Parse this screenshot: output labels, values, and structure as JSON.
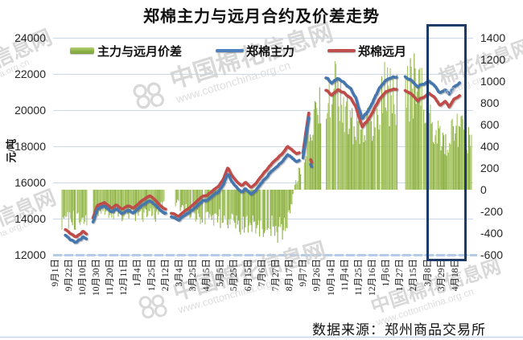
{
  "title": "郑棉主力与远月合约及价差走势",
  "source": "数据来源：郑州商品交易所",
  "watermark": {
    "brand": "中国棉花信息网",
    "url": "www.cottonchina.org.cn",
    "brand_part1": "花信息网",
    "brand_part2": "棉花信息网",
    "url_part1": "nchina.org.cn",
    "url_part2": "ina.org.cn"
  },
  "chart_data": {
    "type": "combo",
    "title": "郑棉主力与远月合约及价差走势",
    "legend": [
      {
        "label": "主力与远月价差",
        "type": "bar",
        "color": "#8FB347"
      },
      {
        "label": "郑棉主力",
        "type": "line",
        "color": "#4F81BD"
      },
      {
        "label": "郑棉远月",
        "type": "line",
        "color": "#C0504D"
      }
    ],
    "y_left": {
      "label": "元/吨",
      "min": 12000,
      "max": 24000,
      "step": 2000,
      "ticks": [
        "24000",
        "22000",
        "20000",
        "18000",
        "16000",
        "14000",
        "12000"
      ]
    },
    "y_right": {
      "min": -600,
      "max": 1400,
      "step": 200,
      "ticks": [
        "1400",
        "1200",
        "1000",
        "800",
        "600",
        "400",
        "200",
        "0",
        "-200",
        "-400",
        "-600"
      ]
    },
    "x_ticks": [
      "9月1日",
      "9月22日",
      "10月10日",
      "10月30日",
      "11月20日",
      "12月11日",
      "1月4日",
      "1月25日",
      "2月12日",
      "3月4日",
      "3月25日",
      "4月15日",
      "5月5日",
      "5月25日",
      "6月15日",
      "7月6日",
      "7月27日",
      "8月17日",
      "9月7日",
      "9月26日",
      "10月14日",
      "11月4日",
      "11月25日",
      "12月16日",
      "1月6日",
      "1月27日",
      "2月15日",
      "3月8日",
      "3月29日",
      "4月18日"
    ],
    "n_points": 430,
    "seed": 11,
    "noise": {
      "line": 55,
      "line_spread": 22,
      "bar": 85
    },
    "price_anchors": [
      [
        0.02,
        13520,
        -330
      ],
      [
        0.04,
        13200,
        -340
      ],
      [
        0.056,
        12990,
        -310
      ],
      [
        0.071,
        13300,
        -300
      ],
      [
        0.08,
        13160,
        -280
      ],
      [
        0.094,
        14000,
        -250
      ],
      [
        0.105,
        14700,
        -200
      ],
      [
        0.122,
        14890,
        -180
      ],
      [
        0.138,
        14580,
        -220
      ],
      [
        0.151,
        14760,
        -230
      ],
      [
        0.165,
        14490,
        -250
      ],
      [
        0.176,
        14710,
        -250
      ],
      [
        0.19,
        14580,
        -260
      ],
      [
        0.203,
        14800,
        -260
      ],
      [
        0.216,
        15070,
        -270
      ],
      [
        0.23,
        15250,
        -270
      ],
      [
        0.243,
        15030,
        -260
      ],
      [
        0.257,
        14670,
        -250
      ],
      [
        0.272,
        14450,
        -220
      ],
      [
        0.285,
        14270,
        -200
      ],
      [
        0.299,
        14140,
        -200
      ],
      [
        0.312,
        14400,
        -230
      ],
      [
        0.326,
        14620,
        -250
      ],
      [
        0.339,
        14890,
        -260
      ],
      [
        0.352,
        15160,
        -270
      ],
      [
        0.366,
        15290,
        -270
      ],
      [
        0.379,
        15520,
        -280
      ],
      [
        0.393,
        15780,
        -290
      ],
      [
        0.406,
        16220,
        -310
      ],
      [
        0.416,
        16820,
        -330
      ],
      [
        0.425,
        16400,
        -330
      ],
      [
        0.439,
        16050,
        -340
      ],
      [
        0.448,
        15830,
        -350
      ],
      [
        0.458,
        16000,
        -360
      ],
      [
        0.471,
        15740,
        -370
      ],
      [
        0.483,
        15960,
        -380
      ],
      [
        0.496,
        16360,
        -390
      ],
      [
        0.51,
        16760,
        -400
      ],
      [
        0.523,
        17120,
        -420
      ],
      [
        0.536,
        17380,
        -430
      ],
      [
        0.55,
        17730,
        -440
      ],
      [
        0.559,
        18000,
        -450
      ],
      [
        0.567,
        17870,
        -440
      ],
      [
        0.579,
        17560,
        -430
      ],
      [
        0.586,
        17650,
        -420
      ],
      [
        0.594,
        17500,
        -300
      ],
      [
        0.609,
        19900,
        -250
      ],
      [
        0.612,
        17350,
        -250
      ],
      [
        0.616,
        17120,
        -250
      ],
      [
        0.649,
        21110,
        700
      ],
      [
        0.663,
        20840,
        680
      ],
      [
        0.678,
        21110,
        620
      ],
      [
        0.694,
        20930,
        560
      ],
      [
        0.709,
        20670,
        520
      ],
      [
        0.722,
        20090,
        480
      ],
      [
        0.736,
        19070,
        450
      ],
      [
        0.749,
        19420,
        480
      ],
      [
        0.762,
        19960,
        550
      ],
      [
        0.776,
        20580,
        620
      ],
      [
        0.789,
        20930,
        640
      ],
      [
        0.801,
        21110,
        660
      ],
      [
        0.815,
        21150,
        660
      ],
      [
        0.838,
        21050,
        750
      ],
      [
        0.854,
        20890,
        740
      ],
      [
        0.868,
        20530,
        760
      ],
      [
        0.881,
        20710,
        740
      ],
      [
        0.895,
        20930,
        660
      ],
      [
        0.908,
        20710,
        640
      ],
      [
        0.921,
        20270,
        680
      ],
      [
        0.933,
        20530,
        640
      ],
      [
        0.943,
        20130,
        700
      ],
      [
        0.954,
        20620,
        690
      ],
      [
        0.968,
        20800,
        700
      ]
    ],
    "spread_anchors": [
      [
        0.02,
        -330
      ],
      [
        0.056,
        -340
      ],
      [
        0.08,
        -300
      ],
      [
        0.094,
        -260
      ],
      [
        0.125,
        -230
      ],
      [
        0.165,
        -270
      ],
      [
        0.216,
        -300
      ],
      [
        0.243,
        -280
      ],
      [
        0.258,
        -180
      ],
      [
        0.285,
        -130
      ],
      [
        0.312,
        -220
      ],
      [
        0.352,
        -290
      ],
      [
        0.393,
        -310
      ],
      [
        0.416,
        -350
      ],
      [
        0.448,
        -380
      ],
      [
        0.483,
        -400
      ],
      [
        0.523,
        -430
      ],
      [
        0.55,
        -450
      ],
      [
        0.562,
        -300
      ],
      [
        0.57,
        -120
      ],
      [
        0.58,
        120
      ],
      [
        0.592,
        180
      ],
      [
        0.6,
        300
      ],
      [
        0.609,
        700
      ],
      [
        0.621,
        750
      ],
      [
        0.635,
        850
      ],
      [
        0.649,
        900
      ],
      [
        0.663,
        1050
      ],
      [
        0.678,
        1100
      ],
      [
        0.694,
        950
      ],
      [
        0.709,
        700
      ],
      [
        0.722,
        640
      ],
      [
        0.736,
        620
      ],
      [
        0.749,
        700
      ],
      [
        0.762,
        850
      ],
      [
        0.776,
        1000
      ],
      [
        0.789,
        1050
      ],
      [
        0.801,
        1020
      ],
      [
        0.815,
        1000
      ],
      [
        0.838,
        950
      ],
      [
        0.854,
        1180
      ],
      [
        0.868,
        1050
      ],
      [
        0.881,
        1000
      ],
      [
        0.895,
        720
      ],
      [
        0.908,
        680
      ],
      [
        0.921,
        530
      ],
      [
        0.933,
        500
      ],
      [
        0.943,
        560
      ],
      [
        0.954,
        640
      ],
      [
        0.972,
        660
      ],
      [
        0.985,
        520
      ],
      [
        0.995,
        600
      ]
    ],
    "line_gaps": [
      [
        0.08,
        0.094
      ],
      [
        0.268,
        0.281
      ],
      [
        0.588,
        0.5935
      ],
      [
        0.6095,
        0.6115
      ],
      [
        0.617,
        0.648
      ],
      [
        0.818,
        0.836
      ]
    ],
    "bar_gaps": [
      [
        0.08,
        0.094
      ],
      [
        0.264,
        0.289
      ],
      [
        0.589,
        0.597
      ],
      [
        0.637,
        0.648
      ],
      [
        0.818,
        0.836
      ]
    ],
    "colors": {
      "bar": "#8FB347",
      "bar_light": "#A9C767",
      "main": "#4576AE",
      "far": "#BF4C49",
      "grid": "#CBD8EA",
      "baseline": "#B4CCE8",
      "bottom_edge": "#C5D6EA",
      "box": "#1E3A67"
    }
  }
}
